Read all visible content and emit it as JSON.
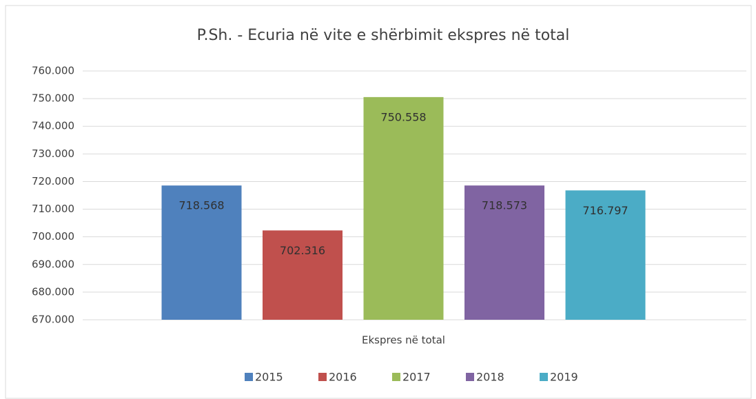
{
  "chart_data": {
    "type": "bar",
    "title": "P.Sh. - Ecuria në vite e shërbimit ekspres në total",
    "categories": [
      "Ekspres në total"
    ],
    "series": [
      {
        "name": "2015",
        "color": "#4f81bd",
        "values": [
          718568
        ],
        "value_labels": [
          "718.568"
        ]
      },
      {
        "name": "2016",
        "color": "#c0504d",
        "values": [
          702316
        ],
        "value_labels": [
          "702.316"
        ]
      },
      {
        "name": "2017",
        "color": "#9bbb59",
        "values": [
          750558
        ],
        "value_labels": [
          "750.558"
        ]
      },
      {
        "name": "2018",
        "color": "#8064a2",
        "values": [
          718573
        ],
        "value_labels": [
          "718.573"
        ]
      },
      {
        "name": "2019",
        "color": "#4bacc6",
        "values": [
          716797
        ],
        "value_labels": [
          "716.797"
        ]
      }
    ],
    "ylim": [
      670000,
      760000
    ],
    "yticks": [
      {
        "value": 670000,
        "label": "670.000"
      },
      {
        "value": 680000,
        "label": "680.000"
      },
      {
        "value": 690000,
        "label": "690.000"
      },
      {
        "value": 700000,
        "label": "700.000"
      },
      {
        "value": 710000,
        "label": "710.000"
      },
      {
        "value": 720000,
        "label": "720.000"
      },
      {
        "value": 730000,
        "label": "730.000"
      },
      {
        "value": 740000,
        "label": "740.000"
      },
      {
        "value": 750000,
        "label": "750.000"
      },
      {
        "value": 760000,
        "label": "760.000"
      }
    ],
    "grid": true,
    "legend": "bottom"
  }
}
